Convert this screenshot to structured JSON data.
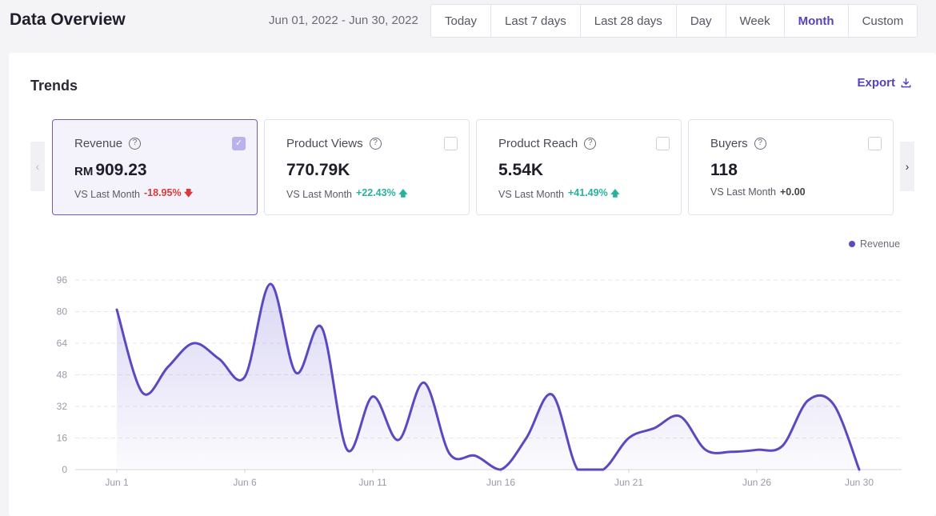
{
  "header": {
    "title": "Data Overview",
    "date_range": "Jun 01, 2022 - Jun 30, 2022",
    "ranges": [
      {
        "label": "Today",
        "active": false
      },
      {
        "label": "Last 7 days",
        "active": false
      },
      {
        "label": "Last 28 days",
        "active": false
      },
      {
        "label": "Day",
        "active": false
      },
      {
        "label": "Week",
        "active": false
      },
      {
        "label": "Month",
        "active": true
      },
      {
        "label": "Custom",
        "active": false
      }
    ]
  },
  "trends": {
    "title": "Trends",
    "export_label": "Export",
    "compare_label": "VS Last Month",
    "metrics": [
      {
        "label": "Revenue",
        "prefix": "RM",
        "value": "909.23",
        "delta": "-18.95%",
        "direction": "down",
        "selected": true
      },
      {
        "label": "Product Views",
        "prefix": "",
        "value": "770.79K",
        "delta": "+22.43%",
        "direction": "up",
        "selected": false
      },
      {
        "label": "Product Reach",
        "prefix": "",
        "value": "5.54K",
        "delta": "+41.49%",
        "direction": "up",
        "selected": false
      },
      {
        "label": "Buyers",
        "prefix": "",
        "value": "118",
        "delta": "+0.00",
        "direction": "flat",
        "selected": false
      }
    ]
  },
  "colors": {
    "accent": "#5544bb",
    "line": "#5a49c0",
    "down": "#d83a3a",
    "up": "#27b39b"
  },
  "chart_data": {
    "type": "area",
    "legend": [
      "Revenue"
    ],
    "legend_position": "top-right",
    "x_ticks": [
      "Jun 1",
      "Jun 6",
      "Jun 11",
      "Jun 16",
      "Jun 21",
      "Jun 26",
      "Jun 30"
    ],
    "x_tick_days": [
      1,
      6,
      11,
      16,
      21,
      26,
      30
    ],
    "y_ticks": [
      0,
      16,
      32,
      48,
      64,
      80,
      96
    ],
    "ylim": [
      0,
      96
    ],
    "grid": true,
    "series": [
      {
        "name": "Revenue",
        "x": [
          1,
          2,
          3,
          4,
          5,
          6,
          7,
          8,
          9,
          10,
          11,
          12,
          13,
          14,
          15,
          16,
          17,
          18,
          19,
          20,
          21,
          22,
          23,
          24,
          25,
          26,
          27,
          28,
          29,
          30
        ],
        "values": [
          81,
          39,
          52,
          64,
          56,
          47,
          94,
          49,
          72,
          10,
          37,
          15,
          44,
          8,
          7,
          0,
          16,
          38,
          0,
          0,
          16,
          21,
          27,
          10,
          9,
          10,
          12,
          35,
          33,
          0
        ]
      }
    ]
  }
}
